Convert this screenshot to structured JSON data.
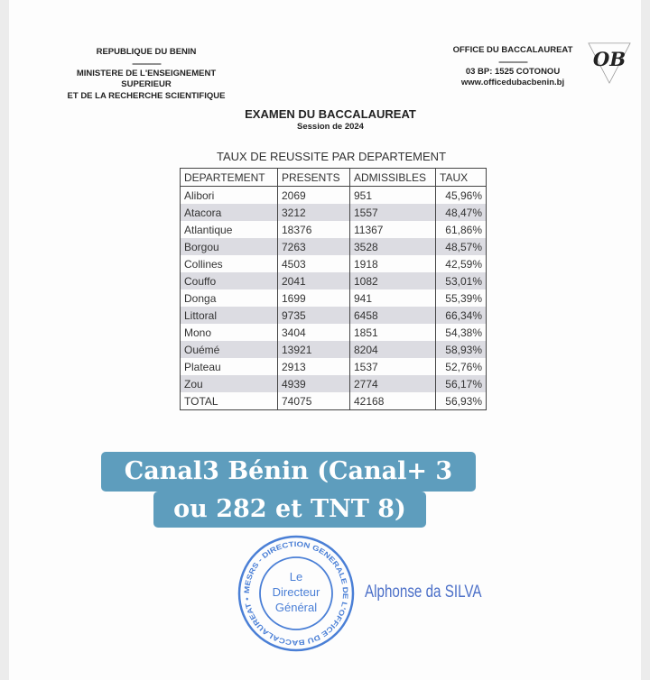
{
  "header_left": {
    "line1": "REPUBLIQUE DU BENIN",
    "separator": "-------------------",
    "line2": "MINISTERE DE L'ENSEIGNEMENT",
    "line3": "SUPERIEUR",
    "line4": "ET DE LA RECHERCHE SCIENTIFIQUE"
  },
  "header_right": {
    "line1": "OFFICE DU BACCALAUREAT",
    "separator": "-------------------",
    "line2": "03 BP: 1525 COTONOU",
    "line3": "www.officedubacbenin.bj",
    "logo_text": "OB"
  },
  "title": "EXAMEN DU BACCALAUREAT",
  "session": "Session de 2024",
  "table": {
    "caption": "TAUX DE REUSSITE PAR DEPARTEMENT",
    "columns": [
      "DEPARTEMENT",
      "PRESENTS",
      "ADMISSIBLES",
      "TAUX"
    ],
    "rows": [
      [
        "Alibori",
        "2069",
        "951",
        "45,96%"
      ],
      [
        "Atacora",
        "3212",
        "1557",
        "48,47%"
      ],
      [
        "Atlantique",
        "18376",
        "11367",
        "61,86%"
      ],
      [
        "Borgou",
        "7263",
        "3528",
        "48,57%"
      ],
      [
        "Collines",
        "4503",
        "1918",
        "42,59%"
      ],
      [
        "Couffo",
        "2041",
        "1082",
        "53,01%"
      ],
      [
        "Donga",
        "1699",
        "941",
        "55,39%"
      ],
      [
        "Littoral",
        "9735",
        "6458",
        "66,34%"
      ],
      [
        "Mono",
        "3404",
        "1851",
        "54,38%"
      ],
      [
        "Ouémé",
        "13921",
        "8204",
        "58,93%"
      ],
      [
        "Plateau",
        "2913",
        "1537",
        "52,76%"
      ],
      [
        "Zou",
        "4939",
        "2774",
        "56,17%"
      ],
      [
        "TOTAL",
        "74075",
        "42168",
        "56,93%"
      ]
    ]
  },
  "overlay": {
    "line1": "Canal3 Bénin (Canal+ 3",
    "line2": "ou 282 et TNT 8)",
    "color": "#5e9dbd"
  },
  "stamp": {
    "ring_text": "MESRS - DIRECTION GENERALE DE L'OFFICE DU BACCALAUREAT •",
    "center_line1": "Le",
    "center_line2": "Directeur",
    "center_line3": "Général",
    "color": "#4a7fd6"
  },
  "signatory": "Alphonse da SILVA"
}
